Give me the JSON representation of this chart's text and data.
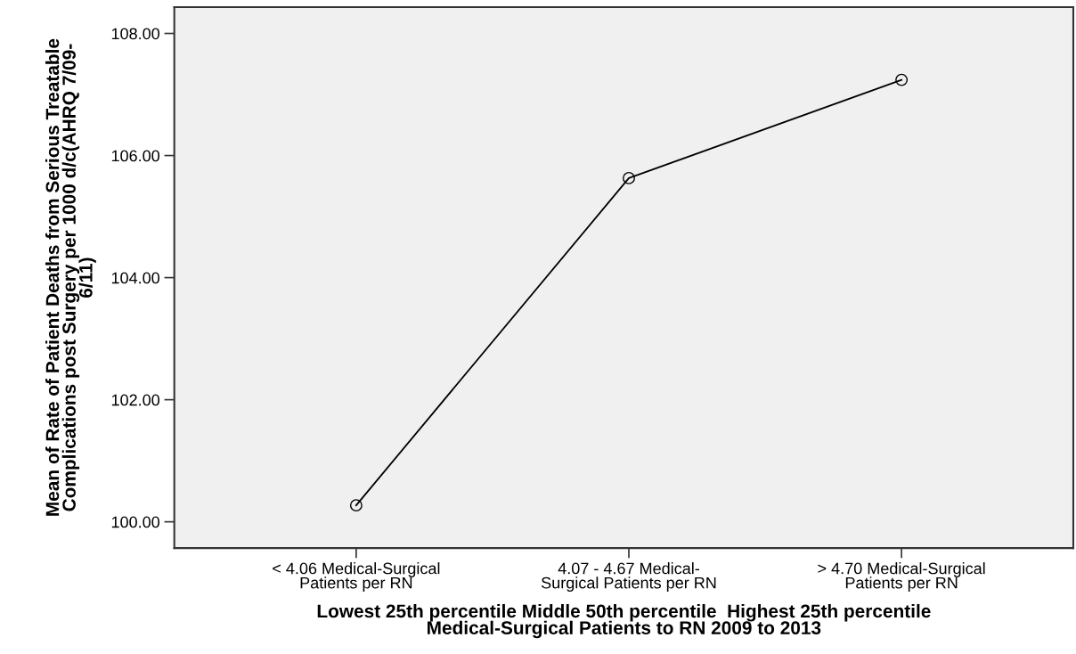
{
  "chart_data": {
    "type": "line",
    "categories": [
      "< 4.06 Medical-Surgical\nPatients per RN",
      "4.07 - 4.67 Medical-\nSurgical Patients per RN",
      "> 4.70 Medical-Surgical\nPatients per RN"
    ],
    "series": [
      {
        "color": "#000000",
        "values": [
          100.27,
          105.63,
          107.24
        ]
      }
    ],
    "xlabel": "Lowest 25th percentile Middle 50th percentile  Highest 25th percentile\nMedical-Surgical Patients to RN 2009 to 2013",
    "ylabel": "Mean of Rate of Patient Deaths from Serious Treatable\nComplications post Surgery per 1000 d/c(AHRQ 7/09-\n6/11)",
    "ylim": [
      99.57,
      108.43
    ],
    "yticks": [
      {
        "value": 100,
        "label": "100.00"
      },
      {
        "value": 102,
        "label": "102.00"
      },
      {
        "value": 104,
        "label": "104.00"
      },
      {
        "value": 106,
        "label": "106.00"
      },
      {
        "value": 108,
        "label": "108.00"
      }
    ],
    "grid": false,
    "marker": "circle",
    "line_style": "solid"
  }
}
